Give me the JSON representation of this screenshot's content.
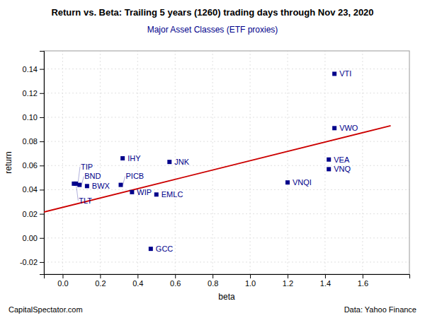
{
  "chart_data": {
    "type": "scatter",
    "title": "Return vs. Beta: Trailing 5 years (1260) trading days through Nov 23, 2020",
    "subtitle": "Major Asset Classes (ETF proxies)",
    "xlabel": "beta",
    "ylabel": "return",
    "series": [
      {
        "type": "scatter",
        "marker": "square",
        "color": "#00008B",
        "labels": [
          "VTI",
          "VWO",
          "VEA",
          "VNQ",
          "VNQI",
          "JNK",
          "IHY",
          "EMLC",
          "GCC",
          "WIP",
          "PICB",
          "BWX",
          "BND",
          "TIP",
          "TLT"
        ],
        "x": [
          1.45,
          1.45,
          1.42,
          1.42,
          1.2,
          0.57,
          0.32,
          0.5,
          0.47,
          0.37,
          0.31,
          0.13,
          0.09,
          0.07,
          0.06
        ],
        "values": [
          0.136,
          0.091,
          0.065,
          0.057,
          0.046,
          0.063,
          0.066,
          0.036,
          -0.009,
          0.038,
          0.044,
          0.043,
          0.044,
          0.045,
          0.045
        ]
      },
      {
        "type": "line",
        "color": "#cc0000",
        "x": [
          -0.1,
          1.75
        ],
        "values": [
          0.0215,
          0.093
        ]
      }
    ],
    "xlim": [
      -0.1,
      1.85
    ],
    "ylim": [
      -0.03,
      0.155
    ],
    "xticks": [
      {
        "value": 0.0,
        "label": "0.0"
      },
      0.2,
      0.4,
      0.6,
      0.8,
      {
        "value": 1.0,
        "label": "1.0"
      },
      1.2,
      1.4,
      1.6
    ],
    "yticks": [
      -0.02,
      {
        "value": 0.0,
        "label": "0.00"
      },
      0.02,
      0.04,
      0.06,
      0.08,
      {
        "value": 0.1,
        "label": "0.10"
      },
      0.12,
      0.14
    ],
    "grid": true,
    "annotations": [
      "CapitalSpectator.com",
      "Data: Yahoo Finance"
    ]
  }
}
